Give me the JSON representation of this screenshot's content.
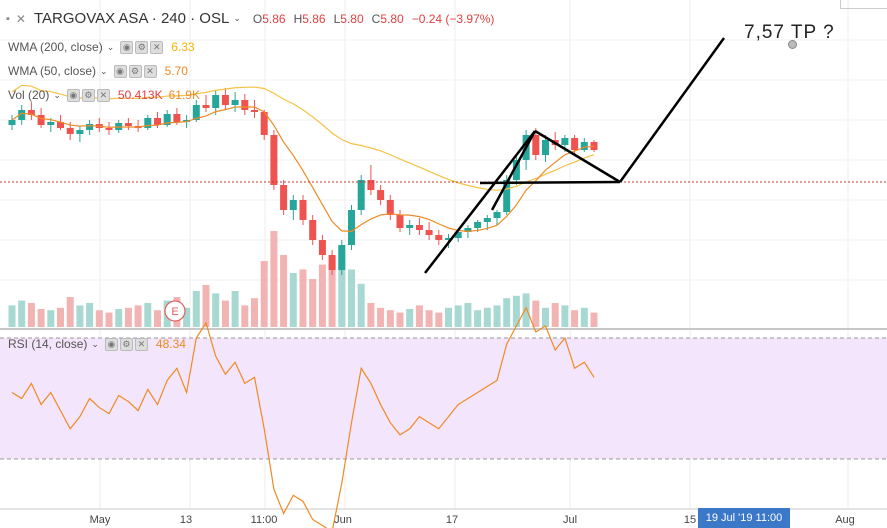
{
  "symbol": {
    "name": "TARGOVAX ASA · 240 · OSL",
    "open_label": "O",
    "open": "5.86",
    "high_label": "H",
    "high": "5.86",
    "low_label": "L",
    "low": "5.80",
    "close_label": "C",
    "close": "5.80",
    "change": "−0.24 (−3.97%)"
  },
  "indicators": {
    "wma200": {
      "label": "WMA (200, close)",
      "value": "6.33",
      "color": "#f5b400"
    },
    "wma50": {
      "label": "WMA (50, close)",
      "value": "5.70",
      "color": "#f08a24"
    },
    "vol": {
      "label": "Vol (20)",
      "value": "50.413K",
      "value2": "61.9K"
    },
    "rsi": {
      "label": "RSI (14, close)",
      "value": "48.34"
    }
  },
  "annotation": {
    "target": "7,57 TP ?",
    "earnings_marker": "E"
  },
  "time_axis": {
    "labels": [
      "May",
      "13",
      "11:00",
      "Jun",
      "17",
      "Jul",
      "15",
      "Aug"
    ],
    "highlight": "19 Jul '19   11:00"
  },
  "colors": {
    "up": "#26a69a",
    "down": "#ef5350",
    "rsi_bg": "#f3e5fb",
    "rsi_line": "#f08a24"
  },
  "candles": [
    [
      6.05,
      6.15,
      6.0,
      6.1
    ],
    [
      6.1,
      6.25,
      6.05,
      6.2
    ],
    [
      6.2,
      6.28,
      6.1,
      6.15
    ],
    [
      6.15,
      6.22,
      6.02,
      6.05
    ],
    [
      6.05,
      6.12,
      5.98,
      6.08
    ],
    [
      6.08,
      6.15,
      6.0,
      6.02
    ],
    [
      6.02,
      6.08,
      5.9,
      5.96
    ],
    [
      5.96,
      6.04,
      5.88,
      6.0
    ],
    [
      6.0,
      6.1,
      5.95,
      6.06
    ],
    [
      6.06,
      6.12,
      5.98,
      6.02
    ],
    [
      6.02,
      6.08,
      5.95,
      6.0
    ],
    [
      6.0,
      6.1,
      5.97,
      6.07
    ],
    [
      6.07,
      6.12,
      6.0,
      6.04
    ],
    [
      6.04,
      6.1,
      5.98,
      6.02
    ],
    [
      6.02,
      6.15,
      6.0,
      6.12
    ],
    [
      6.12,
      6.18,
      6.02,
      6.05
    ],
    [
      6.05,
      6.2,
      6.03,
      6.16
    ],
    [
      6.16,
      6.22,
      6.05,
      6.08
    ],
    [
      6.08,
      6.15,
      6.02,
      6.1
    ],
    [
      6.1,
      6.3,
      6.08,
      6.25
    ],
    [
      6.25,
      6.35,
      6.18,
      6.22
    ],
    [
      6.22,
      6.4,
      6.15,
      6.35
    ],
    [
      6.35,
      6.42,
      6.2,
      6.25
    ],
    [
      6.25,
      6.38,
      6.18,
      6.3
    ],
    [
      6.3,
      6.36,
      6.15,
      6.2
    ],
    [
      6.2,
      6.3,
      6.12,
      6.18
    ],
    [
      6.18,
      6.2,
      5.9,
      5.95
    ],
    [
      5.95,
      6.0,
      5.4,
      5.45
    ],
    [
      5.45,
      5.5,
      5.15,
      5.2
    ],
    [
      5.2,
      5.35,
      5.1,
      5.3
    ],
    [
      5.3,
      5.35,
      5.05,
      5.1
    ],
    [
      5.1,
      5.15,
      4.85,
      4.9
    ],
    [
      4.9,
      4.95,
      4.7,
      4.75
    ],
    [
      4.75,
      4.8,
      4.55,
      4.6
    ],
    [
      4.6,
      4.9,
      4.55,
      4.85
    ],
    [
      4.85,
      5.25,
      4.8,
      5.2
    ],
    [
      5.2,
      5.55,
      5.15,
      5.5
    ],
    [
      5.5,
      5.65,
      5.35,
      5.4
    ],
    [
      5.4,
      5.45,
      5.25,
      5.3
    ],
    [
      5.3,
      5.35,
      5.1,
      5.15
    ],
    [
      5.15,
      5.2,
      4.98,
      5.02
    ],
    [
      5.02,
      5.1,
      4.95,
      5.05
    ],
    [
      5.05,
      5.12,
      4.95,
      5.0
    ],
    [
      5.0,
      5.08,
      4.9,
      4.95
    ],
    [
      4.95,
      5.0,
      4.85,
      4.9
    ],
    [
      4.9,
      4.96,
      4.82,
      4.92
    ],
    [
      4.92,
      5.0,
      4.88,
      4.98
    ],
    [
      4.98,
      5.05,
      4.92,
      5.02
    ],
    [
      5.02,
      5.1,
      4.98,
      5.08
    ],
    [
      5.08,
      5.15,
      5.0,
      5.12
    ],
    [
      5.12,
      5.2,
      5.05,
      5.18
    ],
    [
      5.18,
      5.55,
      5.15,
      5.5
    ],
    [
      5.5,
      5.75,
      5.45,
      5.7
    ],
    [
      5.7,
      6.0,
      5.6,
      5.95
    ],
    [
      5.95,
      6.02,
      5.7,
      5.75
    ],
    [
      5.75,
      5.95,
      5.68,
      5.9
    ],
    [
      5.9,
      5.98,
      5.8,
      5.85
    ],
    [
      5.85,
      5.95,
      5.78,
      5.92
    ],
    [
      5.92,
      5.95,
      5.75,
      5.8
    ],
    [
      5.8,
      5.92,
      5.78,
      5.88
    ],
    [
      5.88,
      5.9,
      5.78,
      5.8
    ]
  ],
  "volumes": [
    18,
    22,
    20,
    15,
    14,
    16,
    25,
    18,
    20,
    14,
    12,
    15,
    16,
    18,
    20,
    14,
    22,
    25,
    16,
    30,
    35,
    28,
    22,
    30,
    18,
    24,
    55,
    80,
    60,
    45,
    48,
    40,
    52,
    58,
    65,
    48,
    36,
    20,
    16,
    14,
    12,
    15,
    18,
    14,
    12,
    16,
    18,
    20,
    14,
    16,
    18,
    24,
    26,
    28,
    22,
    16,
    20,
    18,
    14,
    16,
    12
  ],
  "rsi": [
    52,
    50,
    55,
    48,
    52,
    46,
    40,
    44,
    50,
    47,
    45,
    51,
    49,
    46,
    53,
    48,
    56,
    60,
    52,
    70,
    75,
    64,
    58,
    62,
    55,
    57,
    40,
    20,
    12,
    18,
    16,
    10,
    8,
    6,
    22,
    42,
    60,
    55,
    48,
    42,
    38,
    40,
    44,
    42,
    40,
    44,
    48,
    50,
    52,
    54,
    56,
    68,
    74,
    80,
    72,
    74,
    66,
    70,
    60,
    62,
    57
  ]
}
